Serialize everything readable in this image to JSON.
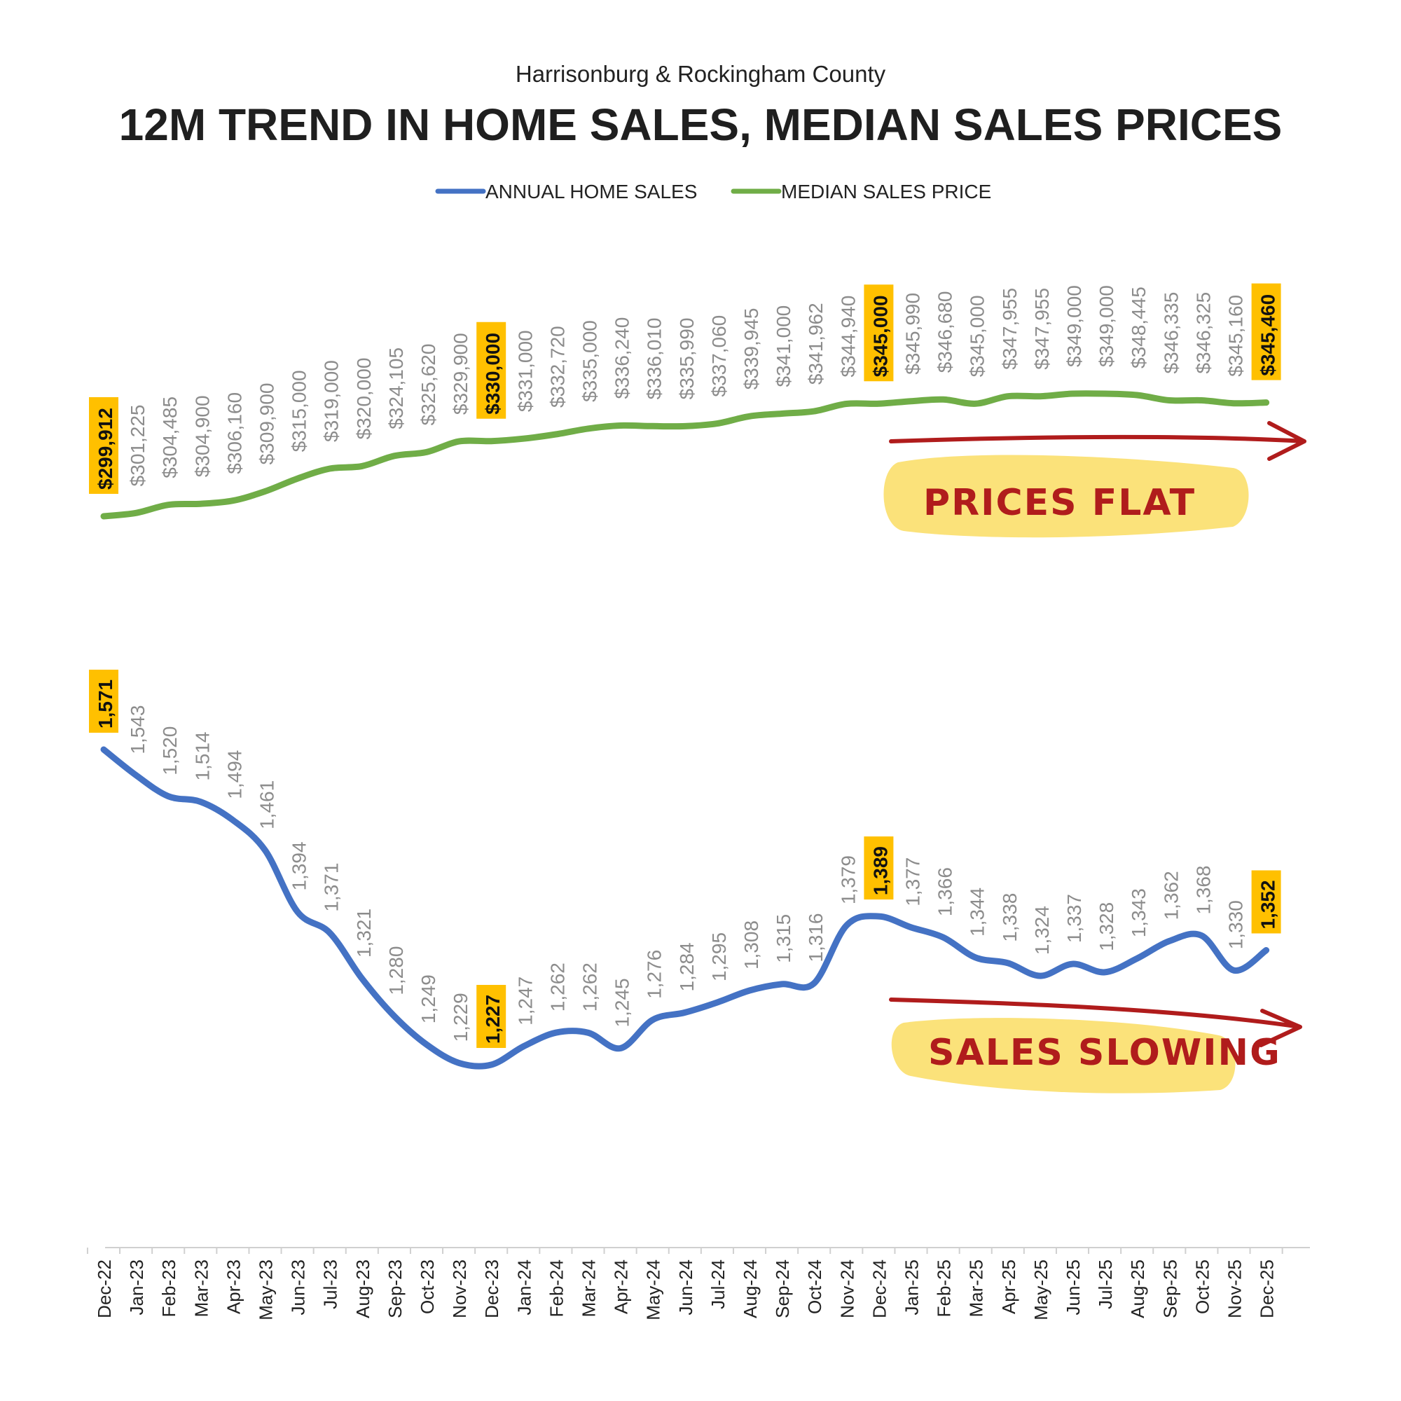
{
  "chart_data": {
    "type": "line",
    "subtitle": "Harrisonburg & Rockingham County",
    "title": "12M TREND IN HOME SALES, MEDIAN SALES PRICES",
    "legend_position": "top",
    "categories": [
      "Dec-22",
      "Jan-23",
      "Feb-23",
      "Mar-23",
      "Apr-23",
      "May-23",
      "Jun-23",
      "Jul-23",
      "Aug-23",
      "Sep-23",
      "Oct-23",
      "Nov-23",
      "Dec-23",
      "Jan-24",
      "Feb-24",
      "Mar-24",
      "Apr-24",
      "May-24",
      "Jun-24",
      "Jul-24",
      "Aug-24",
      "Sep-24",
      "Oct-24",
      "Nov-24",
      "Dec-24",
      "Jan-25",
      "Feb-25",
      "Mar-25",
      "Apr-25",
      "May-25",
      "Jun-25",
      "Jul-25",
      "Aug-25",
      "Sep-25",
      "Oct-25",
      "Nov-25",
      "Dec-25"
    ],
    "grid": false,
    "series": [
      {
        "name": "MEDIAN SALES PRICE",
        "color": "#70ad47",
        "values": [
          299912,
          301225,
          304485,
          304900,
          306160,
          309900,
          315000,
          319000,
          320000,
          324105,
          325620,
          329900,
          330000,
          331000,
          332720,
          335000,
          336240,
          336010,
          335990,
          337060,
          339945,
          341000,
          341962,
          344940,
          345000,
          345990,
          346680,
          345000,
          347955,
          347955,
          349000,
          349000,
          348445,
          346335,
          346325,
          345160,
          345460
        ],
        "labels": [
          "$299,912",
          "$301,225",
          "$304,485",
          "$304,900",
          "$306,160",
          "$309,900",
          "$315,000",
          "$319,000",
          "$320,000",
          "$324,105",
          "$325,620",
          "$329,900",
          "$330,000",
          "$331,000",
          "$332,720",
          "$335,000",
          "$336,240",
          "$336,010",
          "$335,990",
          "$337,060",
          "$339,945",
          "$341,000",
          "$341,962",
          "$344,940",
          "$345,000",
          "$345,990",
          "$346,680",
          "$345,000",
          "$347,955",
          "$347,955",
          "$349,000",
          "$349,000",
          "$348,445",
          "$346,335",
          "$346,325",
          "$345,160",
          "$345,460"
        ],
        "highlight_indices": [
          0,
          12,
          24,
          36
        ]
      },
      {
        "name": "ANNUAL HOME SALES",
        "color": "#4472c4",
        "values": [
          1571,
          1543,
          1520,
          1514,
          1494,
          1461,
          1394,
          1371,
          1321,
          1280,
          1249,
          1229,
          1227,
          1247,
          1262,
          1262,
          1245,
          1276,
          1284,
          1295,
          1308,
          1315,
          1316,
          1379,
          1389,
          1377,
          1366,
          1344,
          1338,
          1324,
          1337,
          1328,
          1343,
          1362,
          1368,
          1330,
          1352
        ],
        "labels": [
          "1,571",
          "1,543",
          "1,520",
          "1,514",
          "1,494",
          "1,461",
          "1,394",
          "1,371",
          "1,321",
          "1,280",
          "1,249",
          "1,229",
          "1,227",
          "1,247",
          "1,262",
          "1,262",
          "1,245",
          "1,276",
          "1,284",
          "1,295",
          "1,308",
          "1,315",
          "1,316",
          "1,379",
          "1,389",
          "1,377",
          "1,366",
          "1,344",
          "1,338",
          "1,324",
          "1,337",
          "1,328",
          "1,343",
          "1,362",
          "1,368",
          "1,330",
          "1,352"
        ],
        "highlight_indices": [
          0,
          12,
          24,
          36
        ]
      }
    ],
    "highlight_color": "#ffc000",
    "annotations": [
      {
        "text": "PRICES FLAT",
        "arrow_color": "#b01c1c",
        "highlight_color": "#fbe27a"
      },
      {
        "text": "SALES SLOWING",
        "arrow_color": "#b01c1c",
        "highlight_color": "#fbe27a"
      }
    ]
  }
}
